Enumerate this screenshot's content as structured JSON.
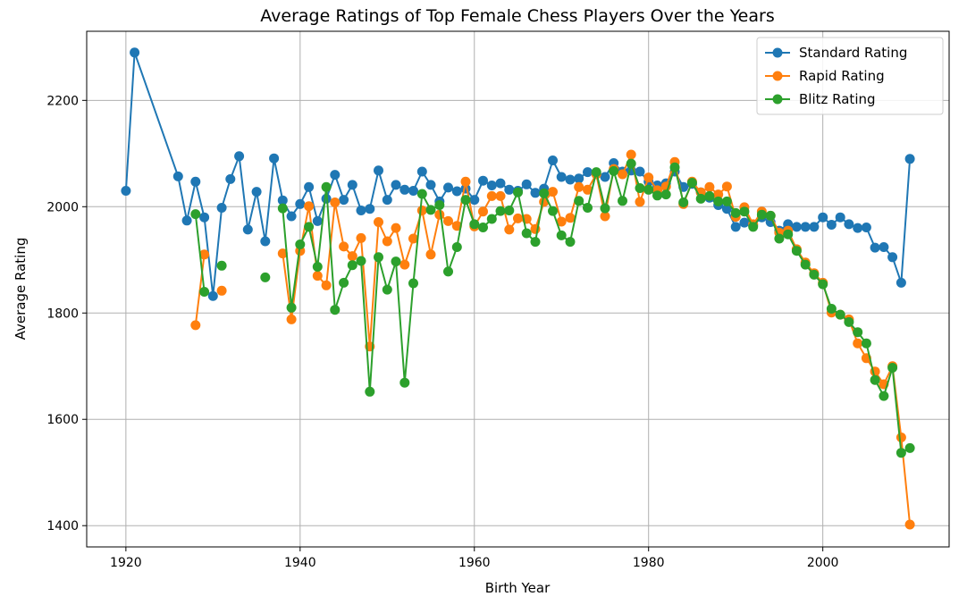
{
  "chart_data": {
    "type": "line",
    "title": "Average Ratings of Top Female Chess Players Over the Years",
    "xlabel": "Birth Year",
    "ylabel": "Average Rating",
    "xlim": [
      1915.5,
      2014.5
    ],
    "ylim": [
      1360,
      2330
    ],
    "xticks": [
      1920,
      1940,
      1960,
      1980,
      2000
    ],
    "yticks": [
      1400,
      1600,
      1800,
      2000,
      2200
    ],
    "grid": true,
    "legend_position": "top-right",
    "series": [
      {
        "name": "Standard Rating",
        "color": "#1f77b4",
        "points": [
          [
            1920,
            2030
          ],
          [
            1921,
            2290
          ],
          [
            1926,
            2057
          ],
          [
            1927,
            1974
          ],
          [
            1928,
            2047
          ],
          [
            1929,
            1980
          ],
          [
            1930,
            1832
          ],
          [
            1931,
            1998
          ],
          [
            1932,
            2052
          ],
          [
            1933,
            2095
          ],
          [
            1934,
            1957
          ],
          [
            1935,
            2028
          ],
          [
            1936,
            1935
          ],
          [
            1937,
            2091
          ],
          [
            1938,
            2012
          ],
          [
            1939,
            1982
          ],
          [
            1940,
            2005
          ],
          [
            1941,
            2037
          ],
          [
            1942,
            1973
          ],
          [
            1943,
            2015
          ],
          [
            1944,
            2060
          ],
          [
            1945,
            2013
          ],
          [
            1946,
            2041
          ],
          [
            1947,
            1993
          ],
          [
            1948,
            1996
          ],
          [
            1949,
            2068
          ],
          [
            1950,
            2013
          ],
          [
            1951,
            2041
          ],
          [
            1952,
            2032
          ],
          [
            1953,
            2030
          ],
          [
            1954,
            2066
          ],
          [
            1955,
            2041
          ],
          [
            1956,
            2010
          ],
          [
            1957,
            2036
          ],
          [
            1958,
            2029
          ],
          [
            1959,
            2034
          ],
          [
            1960,
            2013
          ],
          [
            1961,
            2049
          ],
          [
            1962,
            2040
          ],
          [
            1963,
            2044
          ],
          [
            1964,
            2032
          ],
          [
            1965,
            2030
          ],
          [
            1966,
            2042
          ],
          [
            1967,
            2026
          ],
          [
            1968,
            2034
          ],
          [
            1969,
            2087
          ],
          [
            1970,
            2056
          ],
          [
            1971,
            2051
          ],
          [
            1972,
            2053
          ],
          [
            1973,
            2065
          ],
          [
            1974,
            2062
          ],
          [
            1975,
            2056
          ],
          [
            1976,
            2082
          ],
          [
            1977,
            2066
          ],
          [
            1978,
            2068
          ],
          [
            1979,
            2066
          ],
          [
            1980,
            2047
          ],
          [
            1981,
            2040
          ],
          [
            1982,
            2044
          ],
          [
            1983,
            2066
          ],
          [
            1984,
            2037
          ],
          [
            1985,
            2043
          ],
          [
            1986,
            2027
          ],
          [
            1987,
            2017
          ],
          [
            1988,
            2003
          ],
          [
            1989,
            1996
          ],
          [
            1990,
            1962
          ],
          [
            1991,
            1970
          ],
          [
            1992,
            1965
          ],
          [
            1993,
            1980
          ],
          [
            1994,
            1971
          ],
          [
            1995,
            1955
          ],
          [
            1996,
            1967
          ],
          [
            1997,
            1962
          ],
          [
            1998,
            1962
          ],
          [
            1999,
            1962
          ],
          [
            2000,
            1980
          ],
          [
            2001,
            1966
          ],
          [
            2002,
            1980
          ],
          [
            2003,
            1967
          ],
          [
            2004,
            1960
          ],
          [
            2005,
            1961
          ],
          [
            2006,
            1923
          ],
          [
            2007,
            1924
          ],
          [
            2008,
            1905
          ],
          [
            2009,
            1857
          ],
          [
            2010,
            2090
          ]
        ]
      },
      {
        "name": "Rapid Rating",
        "color": "#ff7f0e",
        "points": [
          [
            1928,
            1777
          ],
          [
            1929,
            1910
          ],
          null,
          [
            1931,
            1842
          ],
          null,
          [
            1938,
            1912
          ],
          [
            1939,
            1788
          ],
          [
            1940,
            1917
          ],
          [
            1941,
            2001
          ],
          [
            1942,
            1870
          ],
          [
            1943,
            1852
          ],
          [
            1944,
            2008
          ],
          [
            1945,
            1925
          ],
          [
            1946,
            1907
          ],
          [
            1947,
            1941
          ],
          [
            1948,
            1737
          ],
          [
            1949,
            1971
          ],
          [
            1950,
            1935
          ],
          [
            1951,
            1960
          ],
          [
            1952,
            1891
          ],
          [
            1953,
            1940
          ],
          [
            1954,
            1993
          ],
          [
            1955,
            1910
          ],
          [
            1956,
            1985
          ],
          [
            1957,
            1973
          ],
          [
            1958,
            1964
          ],
          [
            1959,
            2047
          ],
          [
            1960,
            1963
          ],
          [
            1961,
            1991
          ],
          [
            1962,
            2020
          ],
          [
            1963,
            2020
          ],
          [
            1964,
            1957
          ],
          [
            1965,
            1978
          ],
          [
            1966,
            1977
          ],
          [
            1967,
            1958
          ],
          [
            1968,
            2009
          ],
          [
            1969,
            2028
          ],
          [
            1970,
            1972
          ],
          [
            1971,
            1979
          ],
          [
            1972,
            2037
          ],
          [
            1973,
            2032
          ],
          [
            1974,
            2061
          ],
          [
            1975,
            1982
          ],
          [
            1976,
            2071
          ],
          [
            1977,
            2061
          ],
          [
            1978,
            2098
          ],
          [
            1979,
            2009
          ],
          [
            1980,
            2055
          ],
          [
            1981,
            2031
          ],
          [
            1982,
            2038
          ],
          [
            1983,
            2084
          ],
          [
            1984,
            2005
          ],
          [
            1985,
            2047
          ],
          [
            1986,
            2027
          ],
          [
            1987,
            2037
          ],
          [
            1988,
            2023
          ],
          [
            1989,
            2038
          ],
          [
            1990,
            1981
          ],
          [
            1991,
            1999
          ],
          [
            1992,
            1967
          ],
          [
            1993,
            1991
          ],
          [
            1994,
            1983
          ],
          [
            1995,
            1951
          ],
          [
            1996,
            1955
          ],
          [
            1997,
            1920
          ],
          [
            1998,
            1895
          ],
          [
            1999,
            1875
          ],
          [
            2000,
            1857
          ],
          [
            2001,
            1801
          ],
          [
            2002,
            1797
          ],
          [
            2003,
            1788
          ],
          [
            2004,
            1743
          ],
          [
            2005,
            1715
          ],
          [
            2006,
            1690
          ],
          [
            2007,
            1666
          ],
          [
            2008,
            1700
          ],
          [
            2009,
            1566
          ],
          [
            2010,
            1402
          ]
        ]
      },
      {
        "name": "Blitz Rating",
        "color": "#2ca02c",
        "points": [
          [
            1928,
            1986
          ],
          [
            1929,
            1840
          ],
          null,
          [
            1931,
            1889
          ],
          null,
          [
            1936,
            1867
          ],
          null,
          [
            1938,
            1997
          ],
          [
            1939,
            1810
          ],
          [
            1940,
            1929
          ],
          [
            1941,
            1962
          ],
          [
            1942,
            1887
          ],
          [
            1943,
            2037
          ],
          [
            1944,
            1806
          ],
          [
            1945,
            1857
          ],
          [
            1946,
            1890
          ],
          [
            1947,
            1898
          ],
          [
            1948,
            1652
          ],
          [
            1949,
            1905
          ],
          [
            1950,
            1844
          ],
          [
            1951,
            1897
          ],
          [
            1952,
            1669
          ],
          [
            1953,
            1856
          ],
          [
            1954,
            2024
          ],
          [
            1955,
            1994
          ],
          [
            1956,
            2003
          ],
          [
            1957,
            1878
          ],
          [
            1958,
            1924
          ],
          [
            1959,
            2013
          ],
          [
            1960,
            1967
          ],
          [
            1961,
            1961
          ],
          [
            1962,
            1977
          ],
          [
            1963,
            1992
          ],
          [
            1964,
            1993
          ],
          [
            1965,
            2027
          ],
          [
            1966,
            1950
          ],
          [
            1967,
            1934
          ],
          [
            1968,
            2025
          ],
          [
            1969,
            1992
          ],
          [
            1970,
            1946
          ],
          [
            1971,
            1934
          ],
          [
            1972,
            2011
          ],
          [
            1973,
            1998
          ],
          [
            1974,
            2065
          ],
          [
            1975,
            1997
          ],
          [
            1976,
            2067
          ],
          [
            1977,
            2011
          ],
          [
            1978,
            2081
          ],
          [
            1979,
            2035
          ],
          [
            1980,
            2032
          ],
          [
            1981,
            2021
          ],
          [
            1982,
            2023
          ],
          [
            1983,
            2074
          ],
          [
            1984,
            2008
          ],
          [
            1985,
            2045
          ],
          [
            1986,
            2015
          ],
          [
            1987,
            2020
          ],
          [
            1988,
            2010
          ],
          [
            1989,
            2010
          ],
          [
            1990,
            1988
          ],
          [
            1991,
            1991
          ],
          [
            1992,
            1962
          ],
          [
            1993,
            1985
          ],
          [
            1994,
            1983
          ],
          [
            1995,
            1940
          ],
          [
            1996,
            1948
          ],
          [
            1997,
            1917
          ],
          [
            1998,
            1891
          ],
          [
            1999,
            1872
          ],
          [
            2000,
            1854
          ],
          [
            2001,
            1808
          ],
          [
            2002,
            1797
          ],
          [
            2003,
            1783
          ],
          [
            2004,
            1764
          ],
          [
            2005,
            1743
          ],
          [
            2006,
            1674
          ],
          [
            2007,
            1644
          ],
          [
            2008,
            1697
          ],
          [
            2009,
            1537
          ],
          [
            2010,
            1546
          ]
        ]
      }
    ]
  }
}
